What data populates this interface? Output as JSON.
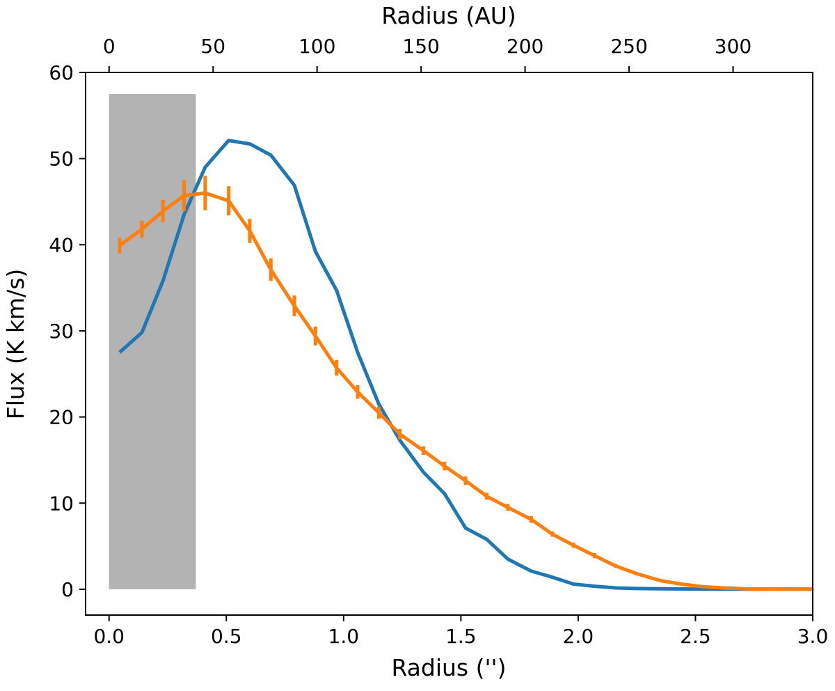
{
  "chart_data": {
    "type": "line",
    "xlabel": "Radius ('')",
    "ylabel": "Flux (K km/s)",
    "top_xlabel": "Radius (AU)",
    "xlim": [
      -0.1,
      3.0
    ],
    "ylim": [
      -3,
      60
    ],
    "top_xlim": [
      -11.3,
      338.3
    ],
    "x_ticks": [
      0.0,
      0.5,
      1.0,
      1.5,
      2.0,
      2.5,
      3.0
    ],
    "x_tick_labels": [
      "0.0",
      "0.5",
      "1.0",
      "1.5",
      "2.0",
      "2.5",
      "3.0"
    ],
    "y_ticks": [
      0,
      10,
      20,
      30,
      40,
      50,
      60
    ],
    "y_tick_labels": [
      "0",
      "10",
      "20",
      "30",
      "40",
      "50",
      "60"
    ],
    "top_x_ticks": [
      0,
      50,
      100,
      150,
      200,
      250,
      300
    ],
    "top_x_tick_labels": [
      "0",
      "50",
      "100",
      "150",
      "200",
      "250",
      "300"
    ],
    "grid": false,
    "shaded_region": {
      "x": [
        0.0,
        0.37
      ],
      "y": [
        0,
        57.5
      ],
      "color": "#b3b3b3"
    },
    "series": [
      {
        "color": "#1f77b4",
        "x": [
          0.045,
          0.14,
          0.23,
          0.32,
          0.41,
          0.51,
          0.6,
          0.69,
          0.79,
          0.88,
          0.97,
          1.06,
          1.15,
          1.24,
          1.34,
          1.43,
          1.52,
          1.61,
          1.7,
          1.8,
          1.89,
          1.98,
          2.07,
          2.16,
          2.25,
          2.35,
          2.44,
          2.53,
          2.62,
          2.71,
          2.8,
          2.9,
          3.0
        ],
        "y": [
          27.5,
          29.8,
          35.8,
          43.5,
          49.0,
          52.1,
          51.7,
          50.4,
          46.9,
          39.2,
          34.7,
          27.5,
          21.5,
          17.3,
          13.6,
          11.1,
          7.1,
          5.8,
          3.5,
          2.1,
          1.4,
          0.6,
          0.35,
          0.15,
          0.08,
          0.05,
          0.03,
          0.02,
          0.02,
          0.01,
          0.01,
          0.01,
          0.01
        ]
      },
      {
        "color": "#ff7f0e",
        "x": [
          0.045,
          0.14,
          0.23,
          0.32,
          0.41,
          0.51,
          0.6,
          0.69,
          0.79,
          0.88,
          0.97,
          1.06,
          1.15,
          1.24,
          1.34,
          1.43,
          1.52,
          1.61,
          1.7,
          1.8,
          1.89,
          1.98,
          2.07,
          2.16,
          2.25,
          2.35,
          2.44,
          2.53,
          2.62,
          2.71,
          2.8,
          2.9,
          3.0
        ],
        "y": [
          39.9,
          41.8,
          43.9,
          45.7,
          46.0,
          45.1,
          41.6,
          37.1,
          32.9,
          29.4,
          25.7,
          22.9,
          20.5,
          18.0,
          16.1,
          14.3,
          12.6,
          10.8,
          9.5,
          8.1,
          6.4,
          5.1,
          3.9,
          2.7,
          1.8,
          1.0,
          0.6,
          0.3,
          0.15,
          0.05,
          0.02,
          0.05,
          0.0
        ],
        "yerr": [
          0.9,
          1.0,
          1.3,
          1.8,
          2.0,
          1.7,
          1.4,
          1.3,
          1.2,
          1.1,
          0.9,
          0.8,
          0.7,
          0.6,
          0.5,
          0.5,
          0.5,
          0.4,
          0.4,
          0.4,
          0.3,
          0.3,
          0.3,
          0.2,
          0.2,
          0.1,
          0.1,
          0.1,
          0.1,
          0.05,
          0.05,
          0.05,
          0.05
        ]
      }
    ]
  }
}
